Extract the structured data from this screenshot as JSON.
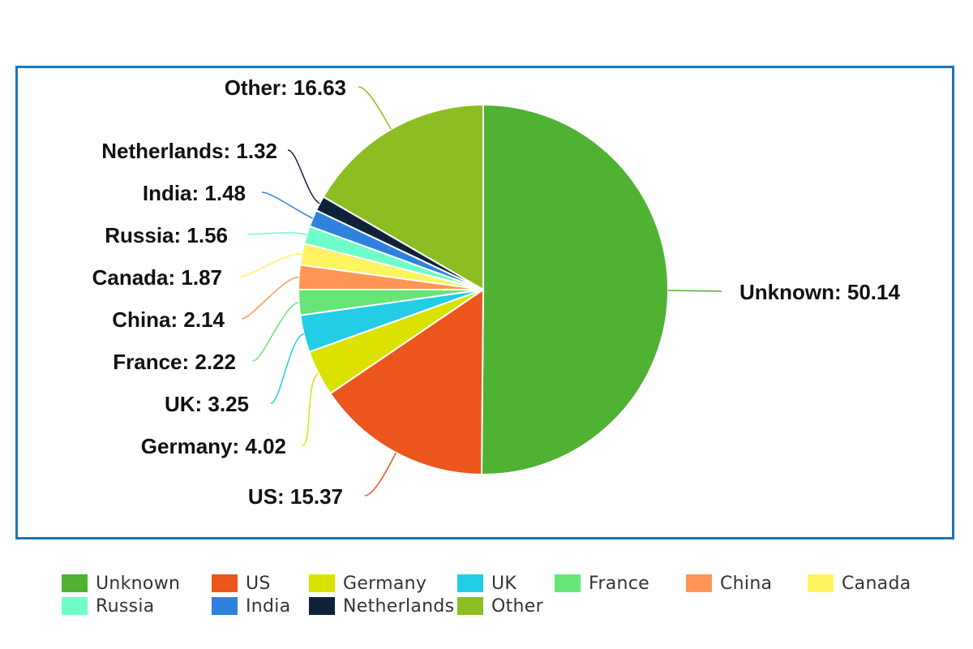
{
  "chart_data": {
    "type": "pie",
    "title": "",
    "slices": [
      {
        "name": "Unknown",
        "value": 50.14,
        "label": "Unknown: 50.14",
        "color": "#4fb233"
      },
      {
        "name": "US",
        "value": 15.37,
        "label": "US: 15.37",
        "color": "#ec561c"
      },
      {
        "name": "Germany",
        "value": 4.02,
        "label": "Germany: 4.02",
        "color": "#dbe200"
      },
      {
        "name": "UK",
        "value": 3.25,
        "label": "UK: 3.25",
        "color": "#23cde6"
      },
      {
        "name": "France",
        "value": 2.22,
        "label": "France: 2.22",
        "color": "#66e676"
      },
      {
        "name": "China",
        "value": 2.14,
        "label": "China: 2.14",
        "color": "#ff9655"
      },
      {
        "name": "Canada",
        "value": 1.87,
        "label": "Canada: 1.87",
        "color": "#fff45f"
      },
      {
        "name": "Russia",
        "value": 1.56,
        "label": "Russia: 1.56",
        "color": "#6effc8"
      },
      {
        "name": "India",
        "value": 1.48,
        "label": "India: 1.48",
        "color": "#2e82dd"
      },
      {
        "name": "Netherlands",
        "value": 1.32,
        "label": "Netherlands: 1.32",
        "color": "#0f223a"
      },
      {
        "name": "Other",
        "value": 16.63,
        "label": "Other: 16.63",
        "color": "#8cbd22"
      }
    ],
    "legend": {
      "position": "bottom",
      "items": [
        "Unknown",
        "US",
        "Germany",
        "UK",
        "France",
        "China",
        "Canada",
        "Russia",
        "India",
        "Netherlands",
        "Other"
      ]
    }
  }
}
